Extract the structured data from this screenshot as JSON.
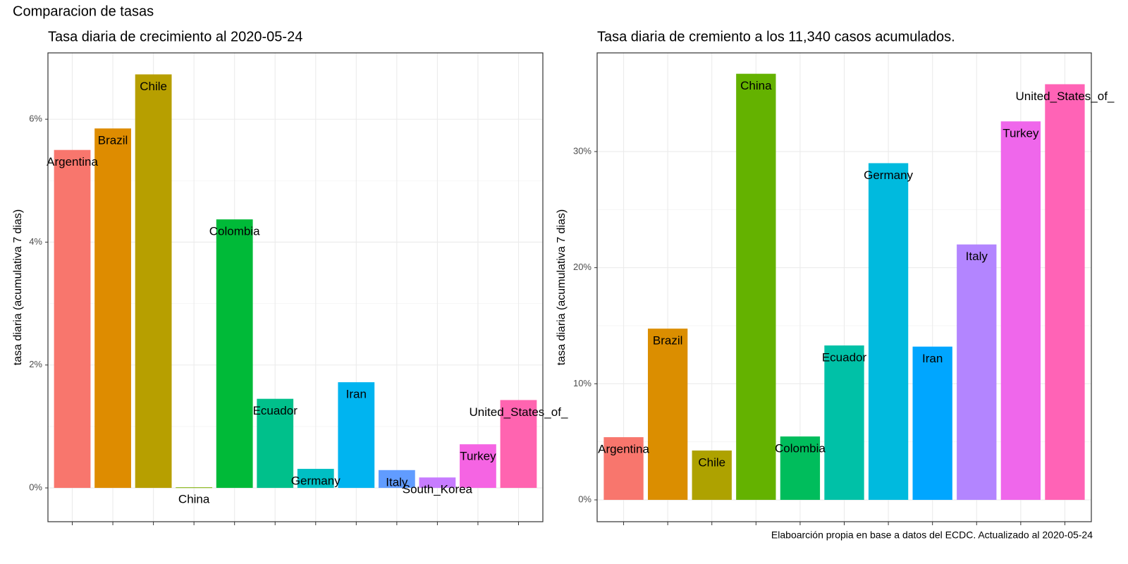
{
  "title": "Comparacion de tasas",
  "caption": "Elaboarción propia en base a datos del ECDC.  Actualizado al  2020-05-24",
  "chart_data": [
    {
      "type": "bar",
      "title": "Tasa diaria de crecimiento al 2020-05-24",
      "y_label": "tasa diaria (acumulativa 7 dias)",
      "categories": [
        "Argentina",
        "Brazil",
        "Chile",
        "China",
        "Colombia",
        "Ecuador",
        "Germany",
        "Iran",
        "Italy",
        "South_Korea",
        "Turkey",
        "United_States_of_"
      ],
      "values": [
        5.5,
        5.85,
        6.73,
        0.01,
        4.37,
        1.45,
        0.31,
        1.72,
        0.29,
        0.17,
        0.71,
        1.43
      ],
      "colors": [
        "#F8766D",
        "#DE8C00",
        "#B79F00",
        "#7CAE00",
        "#00BA38",
        "#00C08B",
        "#00BFC4",
        "#00B4F0",
        "#619CFF",
        "#C77CFF",
        "#F564E3",
        "#FF64B0"
      ],
      "ylim": [
        -0.55,
        7.08
      ],
      "yticks": [
        {
          "value": 0,
          "label": "0%"
        },
        {
          "value": 2,
          "label": "2%"
        },
        {
          "value": 4,
          "label": "4%"
        },
        {
          "value": 6,
          "label": "6%"
        }
      ],
      "grid": true
    },
    {
      "type": "bar",
      "title": "Tasa diaria de cremiento a los 11,340 casos acumulados.",
      "y_label": "tasa diaria (acumulativa 7 dias)",
      "categories": [
        "Argentina",
        "Brazil",
        "Chile",
        "China",
        "Colombia",
        "Ecuador",
        "Germany",
        "Iran",
        "Italy",
        "Turkey",
        "United_States_of_"
      ],
      "values": [
        5.4,
        14.75,
        4.25,
        36.7,
        5.46,
        13.3,
        29.0,
        13.2,
        22.0,
        32.6,
        35.8
      ],
      "colors": [
        "#F8766D",
        "#DB8E00",
        "#AEA200",
        "#64B200",
        "#00BD5C",
        "#00C1A7",
        "#00BADE",
        "#00A6FF",
        "#B385FF",
        "#EF67EB",
        "#FF63B6"
      ],
      "ylim": [
        -1.88,
        38.5
      ],
      "yticks": [
        {
          "value": 0,
          "label": "0%"
        },
        {
          "value": 10,
          "label": "10%"
        },
        {
          "value": 20,
          "label": "20%"
        },
        {
          "value": 30,
          "label": "30%"
        }
      ],
      "grid": true
    }
  ]
}
